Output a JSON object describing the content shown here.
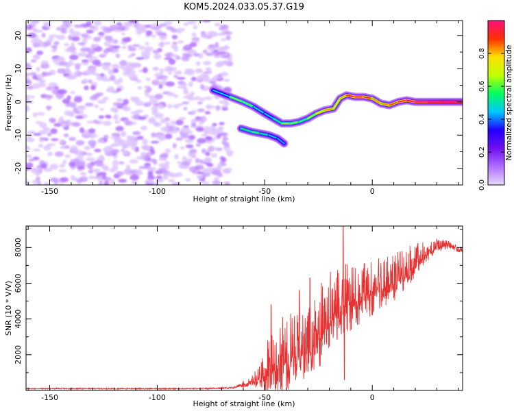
{
  "title": "KOM5.2024.033.05.37.G19",
  "chart_data": [
    {
      "type": "heatmap",
      "xlabel": "Height of straight line (km)",
      "ylabel": "Frequency (Hz)",
      "xlim": [
        -161,
        42
      ],
      "ylim": [
        -25,
        24.5
      ],
      "x_ticks": [
        -150,
        -100,
        -50,
        0
      ],
      "y_ticks": [
        -20,
        -10,
        0,
        10,
        20
      ],
      "colorbar": {
        "label": "Normalized spectral amplitude",
        "range": [
          0,
          1
        ],
        "ticks": [
          0.0,
          0.2,
          0.4,
          0.6,
          0.8
        ],
        "palette": [
          "#e8d8ff",
          "#b070ff",
          "#7010ee",
          "#2000ff",
          "#00c8ff",
          "#00ff60",
          "#c0ff00",
          "#ffe000",
          "#ff3000",
          "#ff1080"
        ]
      },
      "noise_region": {
        "x_range": [
          -161,
          -66
        ],
        "freq_range": [
          -25,
          24.5
        ],
        "amplitude_range": [
          0.03,
          0.1
        ]
      },
      "signal_ridge": {
        "main": [
          {
            "x": -74,
            "f": 3.5,
            "amp": 0.25
          },
          {
            "x": -66,
            "f": 1.5,
            "amp": 0.5
          },
          {
            "x": -60,
            "f": 0.0,
            "amp": 0.55
          },
          {
            "x": -55,
            "f": -1.5,
            "amp": 0.45
          },
          {
            "x": -50,
            "f": -3.5,
            "amp": 0.35
          },
          {
            "x": -46,
            "f": -5.0,
            "amp": 0.4
          },
          {
            "x": -42,
            "f": -6.5,
            "amp": 0.5
          },
          {
            "x": -38,
            "f": -6.5,
            "amp": 0.55
          },
          {
            "x": -34,
            "f": -6.0,
            "amp": 0.5
          },
          {
            "x": -30,
            "f": -5.0,
            "amp": 0.45
          },
          {
            "x": -26,
            "f": -3.5,
            "amp": 0.65
          },
          {
            "x": -22,
            "f": -2.5,
            "amp": 0.7
          },
          {
            "x": -18,
            "f": -2.0,
            "amp": 0.75
          },
          {
            "x": -15,
            "f": 1.0,
            "amp": 0.6
          },
          {
            "x": -12,
            "f": 2.0,
            "amp": 0.8
          },
          {
            "x": -8,
            "f": 1.5,
            "amp": 0.9
          },
          {
            "x": -4,
            "f": 1.5,
            "amp": 0.85
          },
          {
            "x": 0,
            "f": 1.0,
            "amp": 0.75
          },
          {
            "x": 4,
            "f": -0.5,
            "amp": 0.7
          },
          {
            "x": 8,
            "f": -1.0,
            "amp": 0.75
          },
          {
            "x": 12,
            "f": 0.0,
            "amp": 0.8
          },
          {
            "x": 16,
            "f": 0.5,
            "amp": 0.9
          },
          {
            "x": 20,
            "f": 0.0,
            "amp": 0.9
          },
          {
            "x": 26,
            "f": 0.0,
            "amp": 0.95
          },
          {
            "x": 32,
            "f": 0.0,
            "amp": 1.0
          },
          {
            "x": 38,
            "f": 0.0,
            "amp": 1.0
          },
          {
            "x": 42,
            "f": 0.0,
            "amp": 1.0
          }
        ],
        "branch": [
          {
            "x": -61,
            "f": -8.0,
            "amp": 0.4
          },
          {
            "x": -56,
            "f": -9.0,
            "amp": 0.5
          },
          {
            "x": -52,
            "f": -9.5,
            "amp": 0.45
          },
          {
            "x": -48,
            "f": -10.0,
            "amp": 0.4
          },
          {
            "x": -44,
            "f": -11.0,
            "amp": 0.35
          },
          {
            "x": -41,
            "f": -12.5,
            "amp": 0.3
          }
        ]
      }
    },
    {
      "type": "line",
      "xlabel": "Height of straight line (km)",
      "ylabel": "SNR (10 * V/V)",
      "xlim": [
        -161,
        42
      ],
      "ylim": [
        0,
        9200
      ],
      "x_ticks": [
        -150,
        -100,
        -50,
        0
      ],
      "y_ticks": [
        2000,
        4000,
        6000,
        8000
      ],
      "series": [
        {
          "color": "#e83030",
          "envelope": [
            {
              "x": -161,
              "base": 100,
              "amp": 60
            },
            {
              "x": -80,
              "base": 100,
              "amp": 60
            },
            {
              "x": -65,
              "base": 150,
              "amp": 100
            },
            {
              "x": -57,
              "base": 400,
              "amp": 300
            },
            {
              "x": -52,
              "base": 600,
              "amp": 900
            },
            {
              "x": -47,
              "base": 1000,
              "amp": 2500
            },
            {
              "x": -40,
              "base": 1500,
              "amp": 3000
            },
            {
              "x": -30,
              "base": 2000,
              "amp": 2500
            },
            {
              "x": -25,
              "base": 2800,
              "amp": 3000
            },
            {
              "x": -20,
              "base": 3800,
              "amp": 3000
            },
            {
              "x": -15,
              "base": 4500,
              "amp": 2600
            },
            {
              "x": -10,
              "base": 4800,
              "amp": 2500
            },
            {
              "x": -5,
              "base": 5000,
              "amp": 2200
            },
            {
              "x": 0,
              "base": 5400,
              "amp": 2000
            },
            {
              "x": 10,
              "base": 6000,
              "amp": 1800
            },
            {
              "x": 20,
              "base": 7000,
              "amp": 1200
            },
            {
              "x": 25,
              "base": 7600,
              "amp": 800
            },
            {
              "x": 30,
              "base": 8000,
              "amp": 500
            },
            {
              "x": 35,
              "base": 8100,
              "amp": 300
            },
            {
              "x": 42,
              "base": 7800,
              "amp": 200
            }
          ],
          "spikes": [
            {
              "x": -13.5,
              "y": 9200
            },
            {
              "x": -13.0,
              "y": 600
            },
            {
              "x": -34,
              "y": 5600
            },
            {
              "x": -29,
              "y": 6300
            },
            {
              "x": -47,
              "y": 4800
            }
          ]
        }
      ]
    }
  ]
}
